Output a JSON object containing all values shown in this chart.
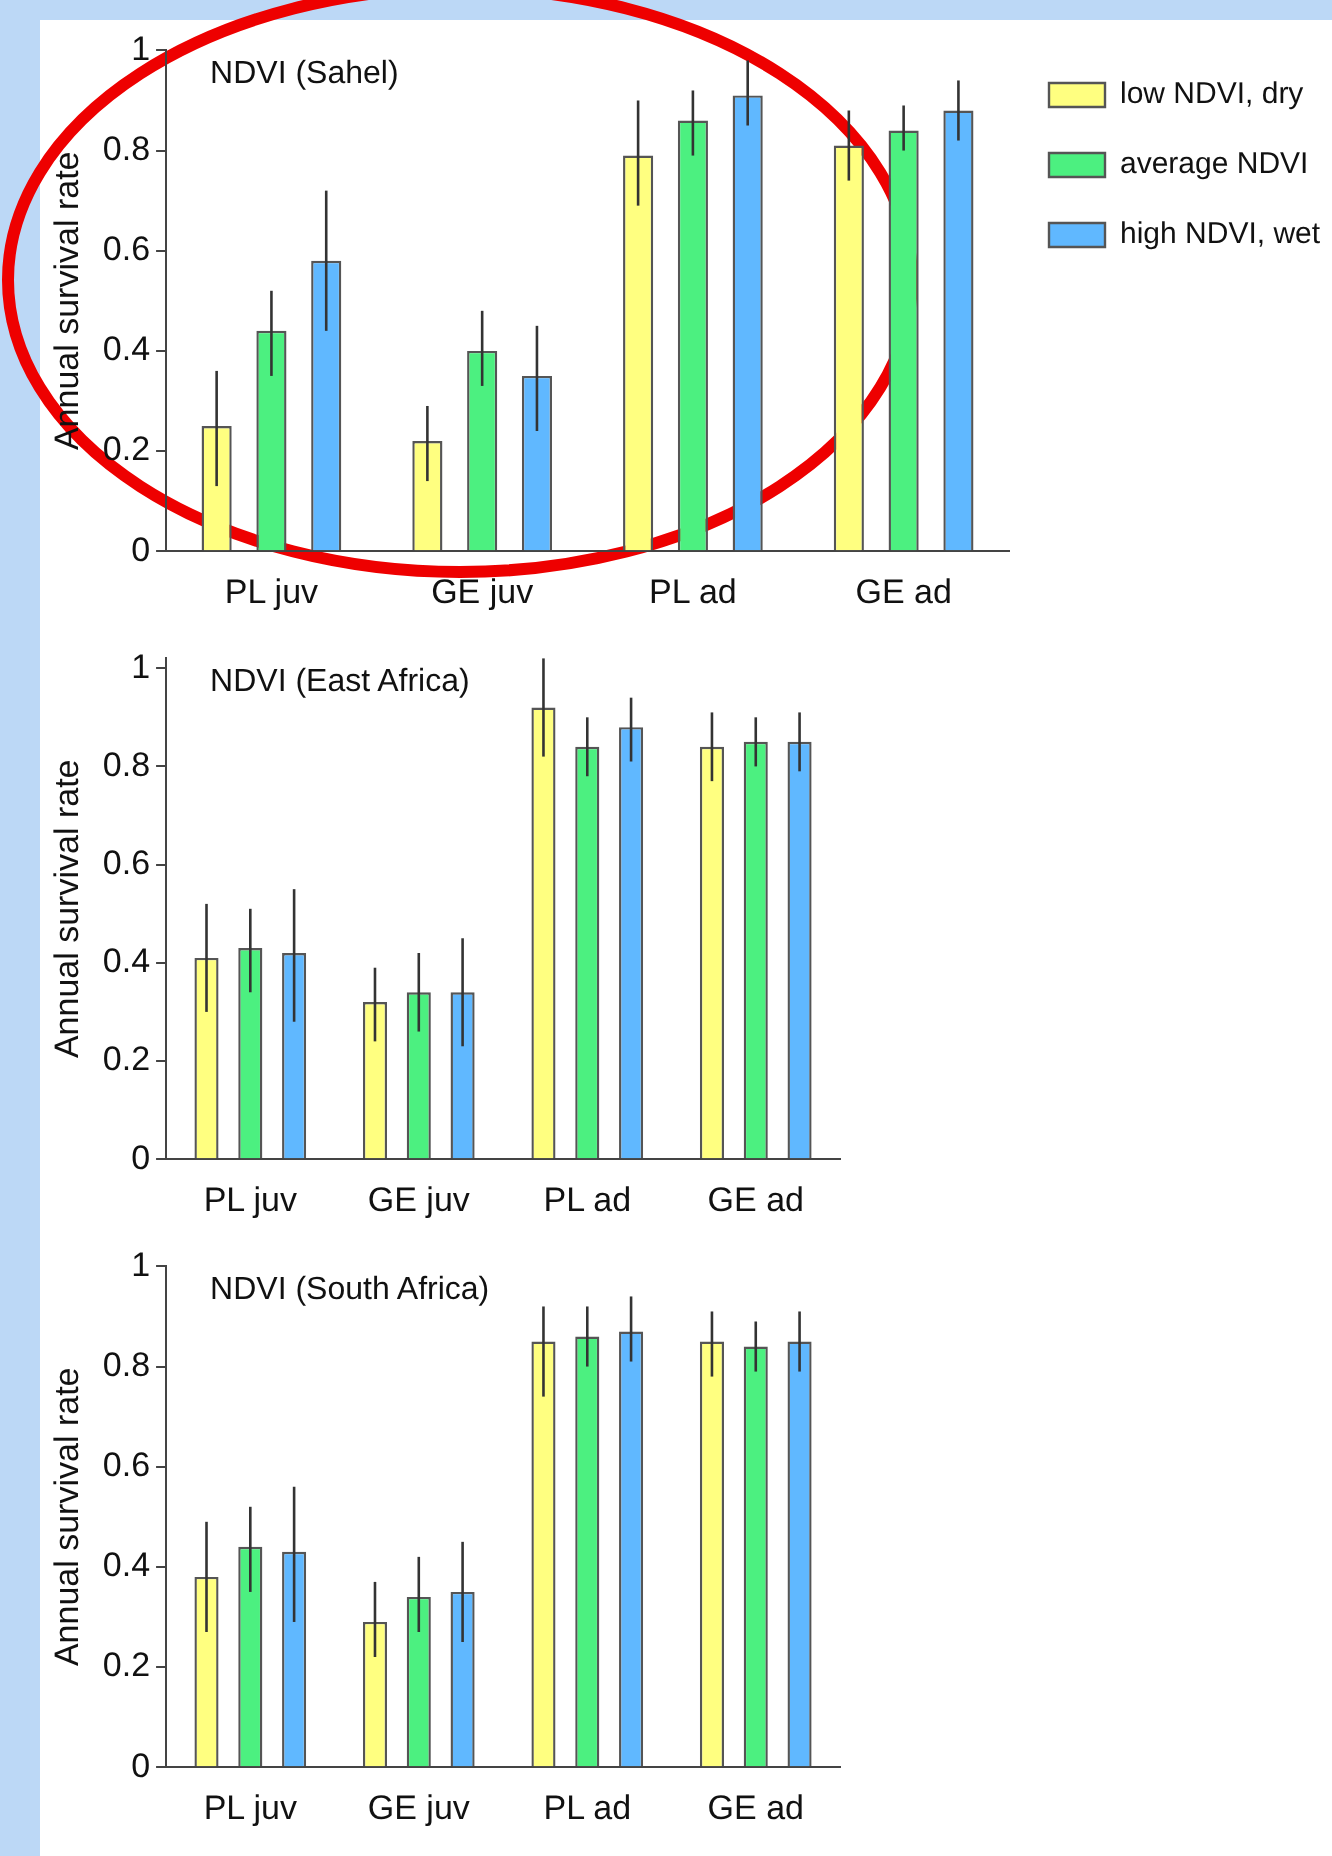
{
  "chart_data": [
    {
      "type": "bar",
      "title": "NDVI (Sahel)",
      "ylabel": "Annual survival rate",
      "categories": [
        "PL juv",
        "GE juv",
        "PL ad",
        "GE ad"
      ],
      "ylim": [
        0,
        1
      ],
      "yticks": [
        0,
        0.2,
        0.4,
        0.6,
        0.8,
        1
      ],
      "grid": false,
      "legend": "right",
      "series": [
        {
          "name": "low NDVI, dry",
          "color": "#ffff80",
          "values": [
            0.25,
            0.22,
            0.79,
            0.81
          ],
          "errors": [
            [
              0.13,
              0.36
            ],
            [
              0.14,
              0.29
            ],
            [
              0.69,
              0.9
            ],
            [
              0.74,
              0.88
            ]
          ]
        },
        {
          "name": "average NDVI",
          "color": "#4cf080",
          "values": [
            0.44,
            0.4,
            0.86,
            0.84
          ],
          "errors": [
            [
              0.35,
              0.52
            ],
            [
              0.33,
              0.48
            ],
            [
              0.79,
              0.92
            ],
            [
              0.8,
              0.89
            ]
          ]
        },
        {
          "name": "high NDVI, wet",
          "color": "#60b8ff",
          "values": [
            0.58,
            0.35,
            0.91,
            0.88
          ],
          "errors": [
            [
              0.44,
              0.72
            ],
            [
              0.24,
              0.45
            ],
            [
              0.85,
              0.98
            ],
            [
              0.82,
              0.94
            ]
          ]
        }
      ]
    },
    {
      "type": "bar",
      "title": "NDVI (East Africa)",
      "ylabel": "Annual survival rate",
      "categories": [
        "PL juv",
        "GE juv",
        "PL ad",
        "GE ad"
      ],
      "ylim": [
        0,
        1.02
      ],
      "yticks": [
        0,
        0.2,
        0.4,
        0.6,
        0.8,
        1
      ],
      "grid": false,
      "legend": false,
      "series": [
        {
          "color": "#ffff80",
          "values": [
            0.41,
            0.32,
            0.92,
            0.84
          ],
          "errors": [
            [
              0.3,
              0.52
            ],
            [
              0.24,
              0.39
            ],
            [
              0.82,
              1.02
            ],
            [
              0.77,
              0.91
            ]
          ]
        },
        {
          "color": "#4cf080",
          "values": [
            0.43,
            0.34,
            0.84,
            0.85
          ],
          "errors": [
            [
              0.34,
              0.51
            ],
            [
              0.26,
              0.42
            ],
            [
              0.78,
              0.9
            ],
            [
              0.8,
              0.9
            ]
          ]
        },
        {
          "color": "#60b8ff",
          "values": [
            0.42,
            0.34,
            0.88,
            0.85
          ],
          "errors": [
            [
              0.28,
              0.55
            ],
            [
              0.23,
              0.45
            ],
            [
              0.81,
              0.94
            ],
            [
              0.79,
              0.91
            ]
          ]
        }
      ]
    },
    {
      "type": "bar",
      "title": "NDVI (South Africa)",
      "ylabel": "Annual survival rate",
      "categories": [
        "PL juv",
        "GE juv",
        "PL ad",
        "GE ad"
      ],
      "ylim": [
        0,
        1
      ],
      "yticks": [
        0,
        0.2,
        0.4,
        0.6,
        0.8,
        1
      ],
      "grid": false,
      "legend": false,
      "series": [
        {
          "color": "#ffff80",
          "values": [
            0.38,
            0.29,
            0.85,
            0.85
          ],
          "errors": [
            [
              0.27,
              0.49
            ],
            [
              0.22,
              0.37
            ],
            [
              0.74,
              0.92
            ],
            [
              0.78,
              0.91
            ]
          ]
        },
        {
          "color": "#4cf080",
          "values": [
            0.44,
            0.34,
            0.86,
            0.84
          ],
          "errors": [
            [
              0.35,
              0.52
            ],
            [
              0.27,
              0.42
            ],
            [
              0.8,
              0.92
            ],
            [
              0.79,
              0.89
            ]
          ]
        },
        {
          "color": "#60b8ff",
          "values": [
            0.43,
            0.35,
            0.87,
            0.85
          ],
          "errors": [
            [
              0.29,
              0.56
            ],
            [
              0.25,
              0.45
            ],
            [
              0.81,
              0.94
            ],
            [
              0.79,
              0.91
            ]
          ]
        }
      ]
    }
  ]
}
